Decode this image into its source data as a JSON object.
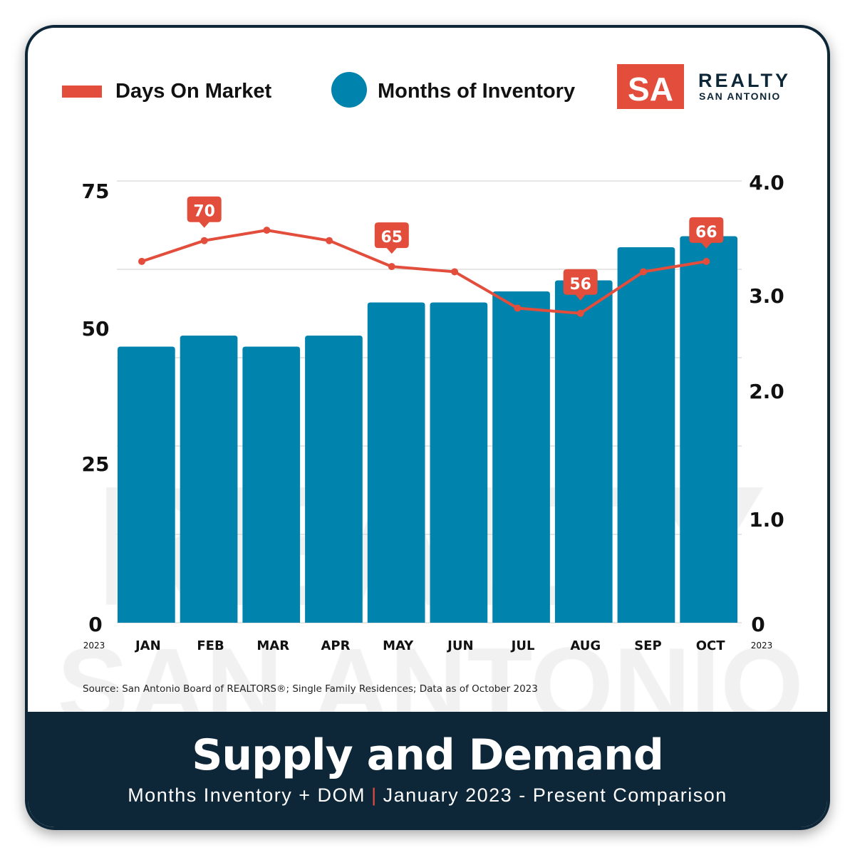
{
  "legend": {
    "line_label": "Days On Market",
    "bar_label": "Months of Inventory"
  },
  "logo": {
    "mark": "SA",
    "name": "REALTY",
    "sub": "SAN ANTONIO"
  },
  "watermark": {
    "line1": "REALTY",
    "line2": "SAN ANTONIO"
  },
  "source": "Source: San Antonio Board of REALTORS®; Single Family Residences; Data as of October 2023",
  "footer": {
    "title": "Supply and Demand",
    "sub_left": "Months Inventory + DOM",
    "separator": "|",
    "sub_right": "January 2023 - Present Comparison"
  },
  "colors": {
    "line": "#e24e3b",
    "bars": "#0083ad",
    "navy": "#0d2638"
  },
  "chart_data": {
    "type": "bar+line",
    "categories": [
      "JAN",
      "FEB",
      "MAR",
      "APR",
      "MAY",
      "JUN",
      "JUL",
      "AUG",
      "SEP",
      "OCT"
    ],
    "year_label_left": "2023",
    "year_label_right": "2023",
    "series": [
      {
        "name": "Months of Inventory",
        "type": "bar",
        "axis": "right",
        "values": [
          2.5,
          2.6,
          2.5,
          2.6,
          2.9,
          2.9,
          3.0,
          3.1,
          3.4,
          3.5
        ]
      },
      {
        "name": "Days On Market",
        "type": "line",
        "axis": "left",
        "values": [
          66,
          70,
          72,
          70,
          65,
          64,
          57,
          56,
          64,
          66
        ],
        "labeled_points": {
          "FEB": "70",
          "MAY": "65",
          "AUG": "56",
          "OCT": "66"
        }
      }
    ],
    "left_ticks": [
      "0",
      "25",
      "50",
      "75"
    ],
    "right_ticks": [
      "0",
      "1.0",
      "2.0",
      "3.0",
      "4.0"
    ],
    "right_ylim": [
      0,
      4
    ],
    "grid": true
  }
}
